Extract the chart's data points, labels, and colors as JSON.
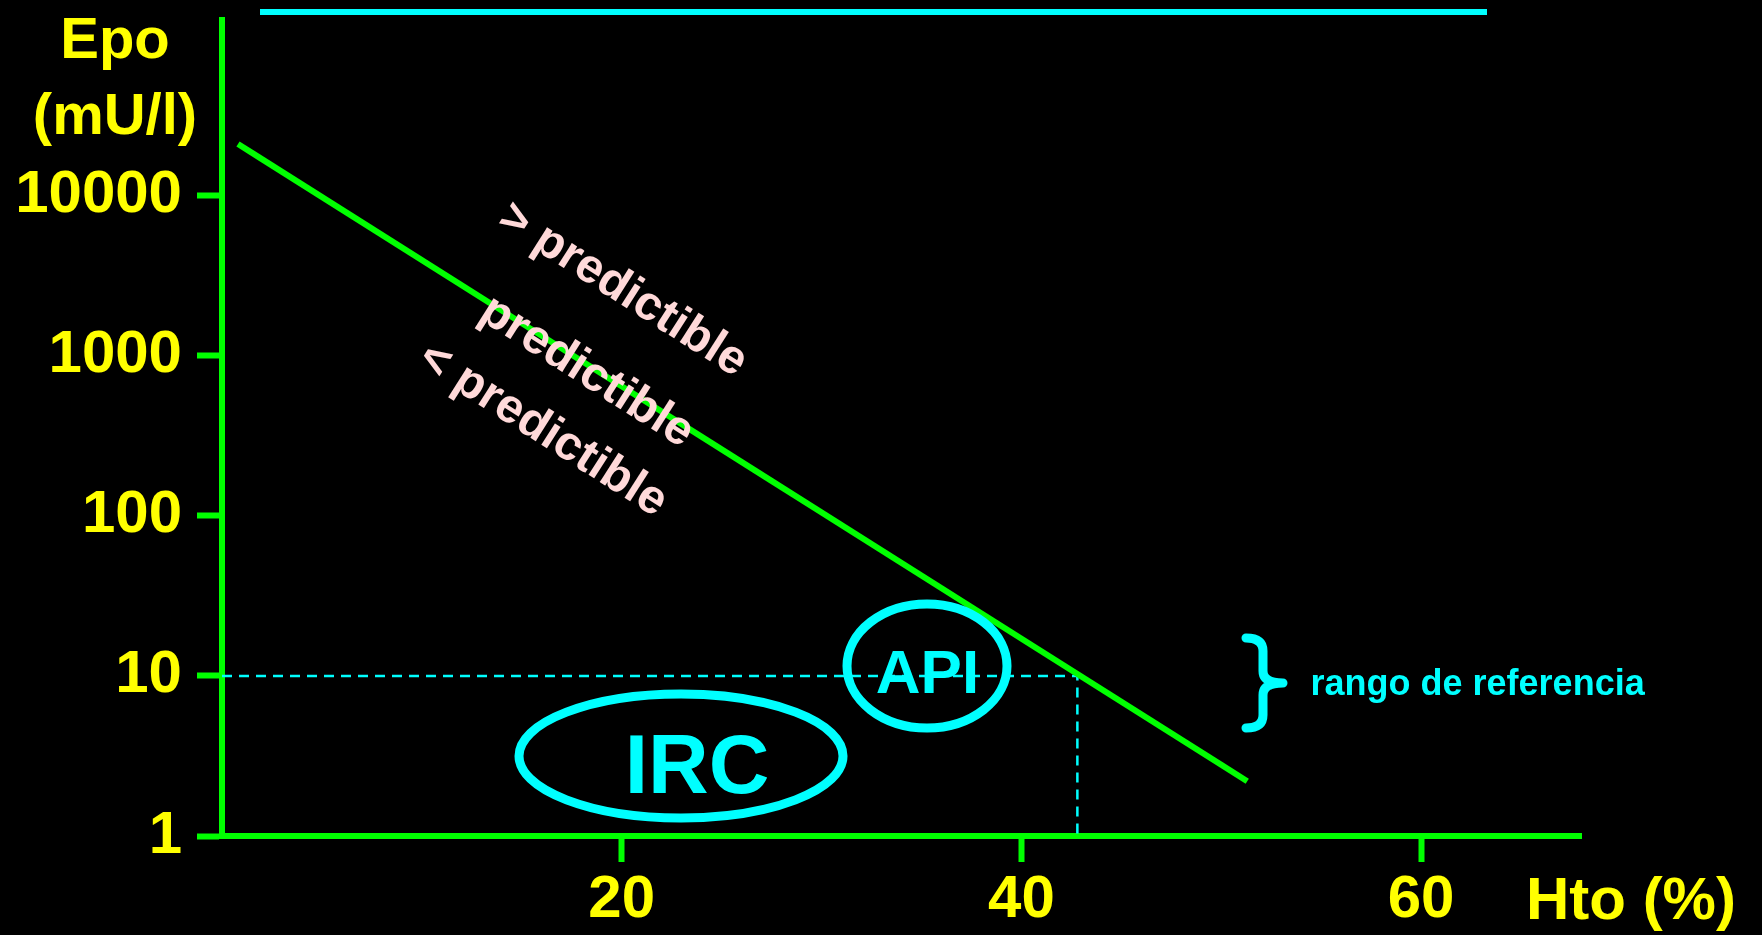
{
  "chart_data": {
    "type": "line",
    "xlabel": "Hto (%)",
    "ylabel": "Epo (mU/l)",
    "series": [
      {
        "color": "#00ff00",
        "x": [
          0.8,
          51.3
        ],
        "values": [
          21000,
          2.2
        ]
      },
      {
        "color": "#00ffff",
        "line_style": "dashed",
        "x": [
          0,
          42.8,
          42.8
        ],
        "values": [
          10,
          10,
          1
        ]
      }
    ],
    "xlim": [
      0,
      68
    ],
    "xticks": [
      20,
      40,
      60
    ],
    "ylim": [
      1,
      125000
    ],
    "yticks": [
      1,
      10,
      100,
      1000,
      10000
    ],
    "log": "y",
    "annotations": [
      "> predictible",
      {
        "text": "predictible",
        "x": 18.3,
        "y": 820
      },
      "< predictible",
      {
        "text": "API",
        "x": 35.3,
        "y": 10.6
      },
      "IRC",
      "rango de referencia"
    ]
  }
}
